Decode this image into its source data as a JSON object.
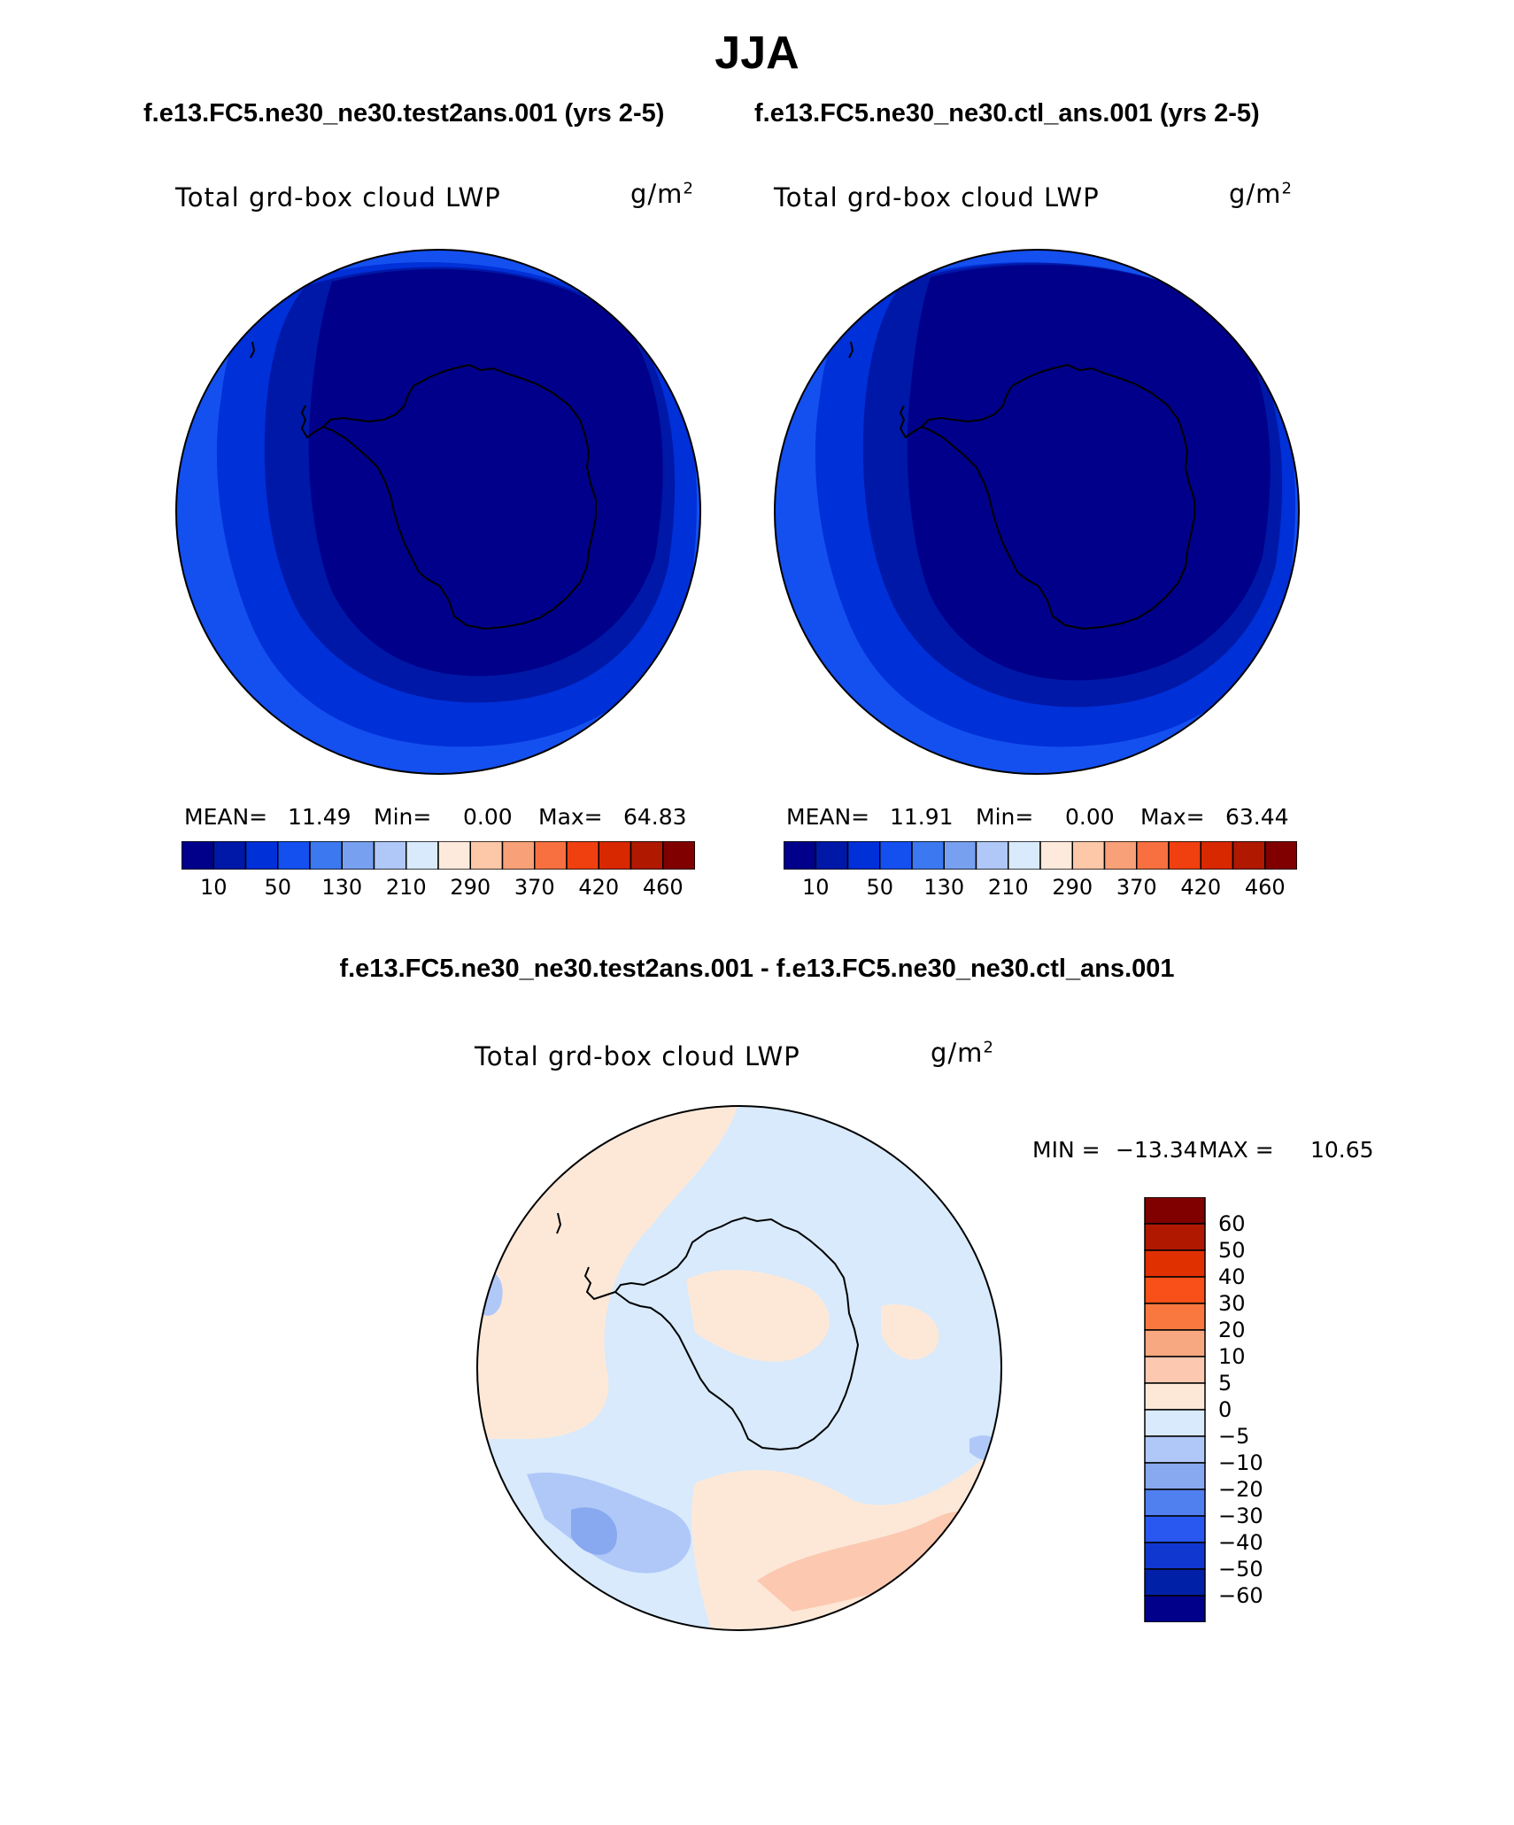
{
  "title": "JJA",
  "case_left": "f.e13.FC5.ne30_ne30.test2ans.001 (yrs 2-5)",
  "case_right": "f.e13.FC5.ne30_ne30.ctl_ans.001 (yrs 2-5)",
  "diff_title": "f.e13.FC5.ne30_ne30.test2ans.001 - f.e13.FC5.ne30_ne30.ctl_ans.001",
  "colors": {
    "abs": [
      "#00008a",
      "#0018a8",
      "#0030d8",
      "#1450f0",
      "#3c78f0",
      "#78a0f0",
      "#b0c8f8",
      "#d8eafc",
      "#feeadc",
      "#fcc8a8",
      "#f8a078",
      "#f87040",
      "#f04010",
      "#d82800",
      "#b01800",
      "#800000"
    ],
    "diff": [
      "#800000",
      "#b01800",
      "#e03000",
      "#f85018",
      "#f87840",
      "#f8a880",
      "#fcc8b0",
      "#fde8d8",
      "#d8eafc",
      "#b0c8f8",
      "#88a8f0",
      "#5080f0",
      "#2858f0",
      "#1038d0",
      "#0020a8",
      "#00008a"
    ],
    "coast": "#000000"
  },
  "chart_data": [
    {
      "type": "heatmap",
      "title": "Total grd-box cloud LWP",
      "units": "g/m2",
      "projection": "south-polar",
      "stats": {
        "mean_label": "MEAN=",
        "mean": "11.49",
        "min_label": "Min=",
        "min": "0.00",
        "max_label": "Max=",
        "max": "64.83"
      },
      "colorbar_levels": [
        10,
        50,
        130,
        210,
        290,
        370,
        420,
        460
      ],
      "colorbar_labels": [
        "10",
        "50",
        "130",
        "210",
        "290",
        "370",
        "420",
        "460"
      ]
    },
    {
      "type": "heatmap",
      "title": "Total grd-box cloud LWP",
      "units": "g/m2",
      "projection": "south-polar",
      "stats": {
        "mean_label": "MEAN=",
        "mean": "11.91",
        "min_label": "Min=",
        "min": "0.00",
        "max_label": "Max=",
        "max": "63.44"
      },
      "colorbar_levels": [
        10,
        50,
        130,
        210,
        290,
        370,
        420,
        460
      ],
      "colorbar_labels": [
        "10",
        "50",
        "130",
        "210",
        "290",
        "370",
        "420",
        "460"
      ]
    },
    {
      "type": "heatmap",
      "title": "Total grd-box cloud LWP",
      "units": "g/m2",
      "projection": "south-polar",
      "stats": {
        "min_label": "MIN =",
        "min": "-13.34",
        "max_label": "MAX =",
        "max": "10.65"
      },
      "colorbar_levels": [
        60,
        50,
        40,
        30,
        20,
        10,
        5,
        0,
        -5,
        -10,
        -20,
        -30,
        -40,
        -50,
        -60
      ],
      "colorbar_labels": [
        "60",
        "50",
        "40",
        "30",
        "20",
        "10",
        "5",
        "0",
        "−5",
        "−10",
        "−20",
        "−30",
        "−40",
        "−50",
        "−60"
      ]
    }
  ]
}
